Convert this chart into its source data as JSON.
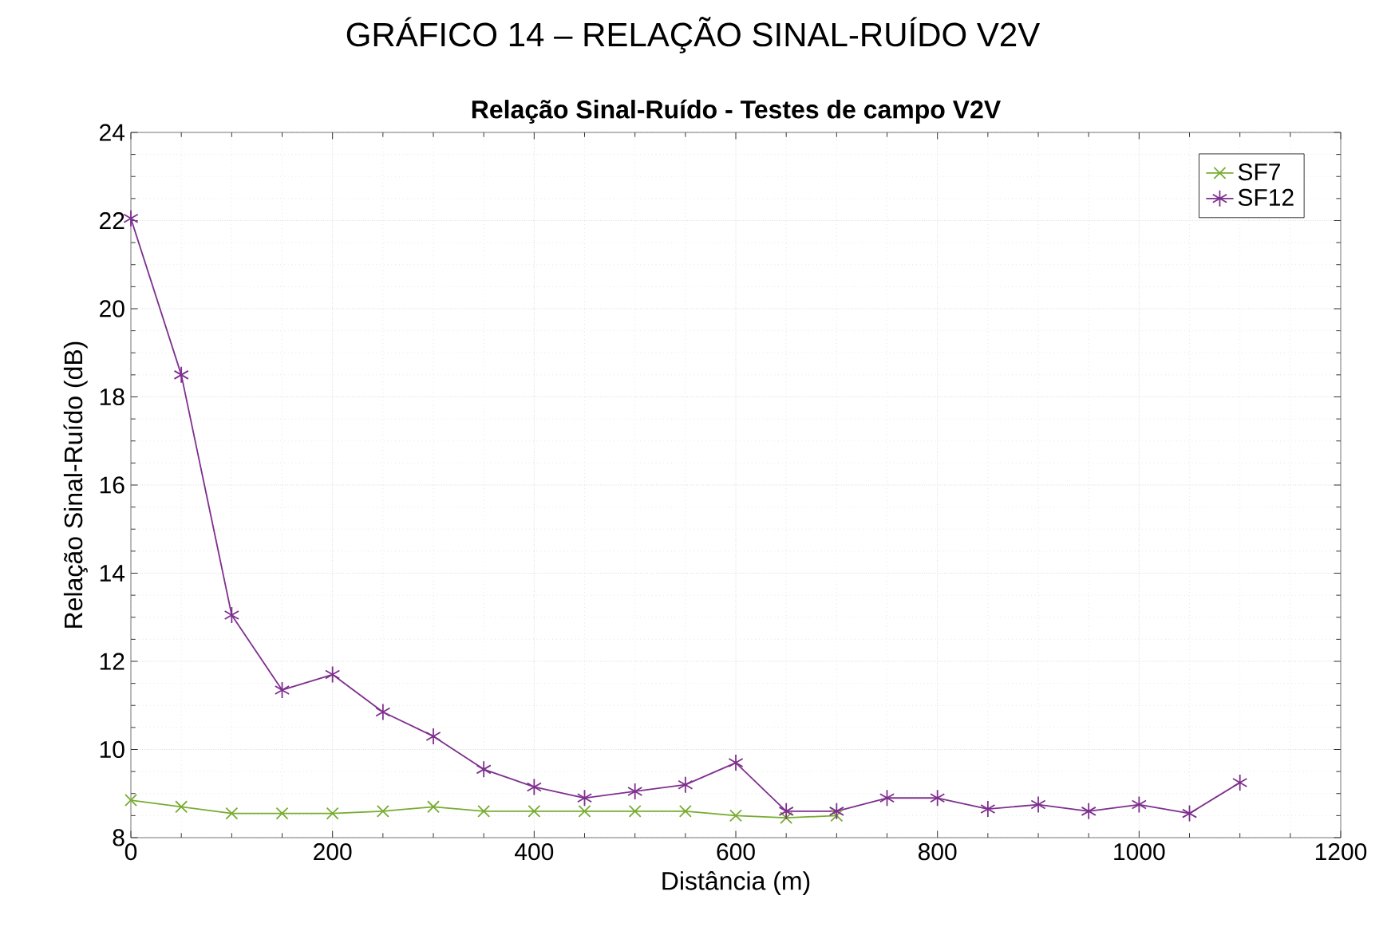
{
  "chart_data": {
    "type": "line",
    "title": "GRÁFICO 14 – RELAÇÃO SINAL-RUÍDO V2V",
    "subtitle": "Relação Sinal-Ruído - Testes de campo V2V",
    "xlabel": "Distância (m)",
    "ylabel": "Relação Sinal-Ruído (dB)",
    "xlim": [
      0,
      1200
    ],
    "xticks": [
      0,
      200,
      400,
      600,
      800,
      1000,
      1200
    ],
    "ylim": [
      8,
      24
    ],
    "yticks": [
      8,
      10,
      12,
      14,
      16,
      18,
      20,
      22,
      24
    ],
    "grid": true,
    "legend": "top right",
    "line_style": "solid",
    "series": [
      {
        "name": "SF7",
        "color": "#77ac30",
        "marker": "cross",
        "x": [
          0,
          50,
          100,
          150,
          200,
          250,
          300,
          350,
          400,
          450,
          500,
          550,
          600,
          650,
          700
        ],
        "values": [
          8.85,
          8.7,
          8.55,
          8.55,
          8.55,
          8.6,
          8.7,
          8.6,
          8.6,
          8.6,
          8.6,
          8.6,
          8.5,
          8.45,
          8.5
        ]
      },
      {
        "name": "SF12",
        "color": "#7e2f8e",
        "marker": "cross",
        "x": [
          0,
          50,
          100,
          150,
          200,
          250,
          300,
          350,
          400,
          450,
          500,
          550,
          600,
          650,
          700,
          750,
          800,
          850,
          900,
          950,
          1000,
          1050,
          1100
        ],
        "values": [
          22.05,
          18.5,
          13.05,
          11.35,
          11.7,
          10.85,
          10.3,
          9.55,
          9.15,
          8.9,
          9.05,
          9.2,
          9.7,
          8.6,
          8.6,
          8.9,
          8.9,
          8.65,
          8.75,
          8.6,
          8.75,
          8.55,
          9.25
        ]
      }
    ]
  }
}
